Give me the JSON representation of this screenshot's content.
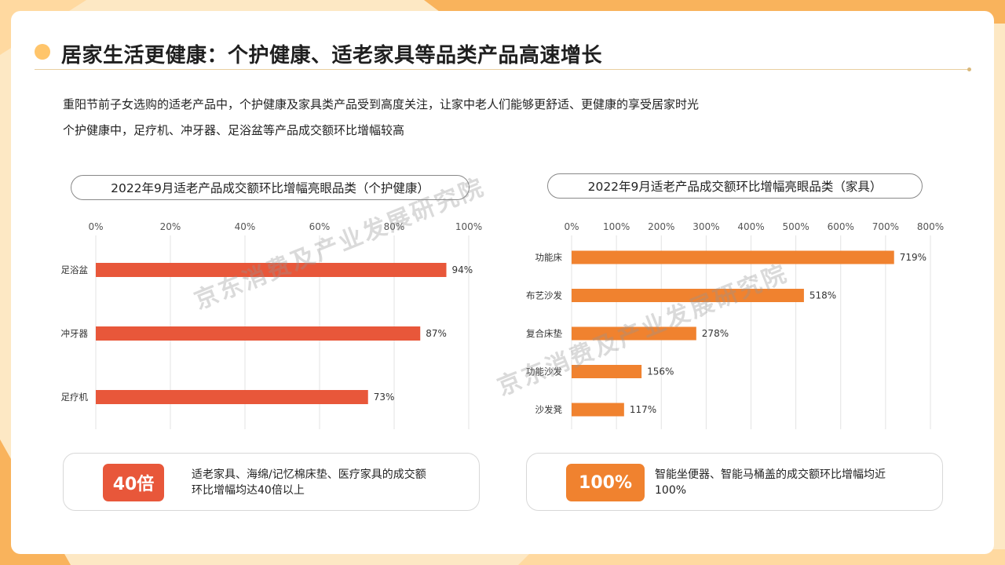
{
  "header": {
    "title": "居家生活更健康：个护健康、适老家具等品类产品高速增长",
    "subtitle_line1": "重阳节前子女选购的适老产品中，个护健康及家具类产品受到高度关注，让家中老人们能够更舒适、更健康的享受居家时光",
    "subtitle_line2": "个护健康中，足疗机、冲牙器、足浴盆等产品成交额环比增幅较高"
  },
  "watermark": "京东消费及产业发展研究院",
  "colors": {
    "bar_left": "#e8573a",
    "bar_right": "#f0822f",
    "accent_dot": "#ffc56b"
  },
  "chart_data": [
    {
      "type": "bar",
      "orientation": "horizontal",
      "title": "2022年9月适老产品成交额环比增幅亮眼品类（个护健康）",
      "categories": [
        "足浴盆",
        "冲牙器",
        "足疗机"
      ],
      "values": [
        94,
        87,
        73
      ],
      "value_labels": [
        "94%",
        "87%",
        "73%"
      ],
      "xlim": [
        0,
        100
      ],
      "ticks": [
        0,
        20,
        40,
        60,
        80,
        100
      ],
      "tick_labels": [
        "0%",
        "20%",
        "40%",
        "60%",
        "80%",
        "100%"
      ],
      "grid": true,
      "color": "#e8573a"
    },
    {
      "type": "bar",
      "orientation": "horizontal",
      "title": "2022年9月适老产品成交额环比增幅亮眼品类（家具）",
      "categories": [
        "功能床",
        "布艺沙发",
        "复合床垫",
        "功能沙发",
        "沙发凳"
      ],
      "values": [
        719,
        518,
        278,
        156,
        117
      ],
      "value_labels": [
        "719%",
        "518%",
        "278%",
        "156%",
        "117%"
      ],
      "xlim": [
        0,
        800
      ],
      "ticks": [
        0,
        100,
        200,
        300,
        400,
        500,
        600,
        700,
        800
      ],
      "tick_labels": [
        "0%",
        "100%",
        "200%",
        "300%",
        "400%",
        "500%",
        "600%",
        "700%",
        "800%"
      ],
      "grid": true,
      "color": "#f0822f"
    }
  ],
  "callouts": [
    {
      "badge": "40倍",
      "text": "适老家具、海绵/记忆棉床垫、医疗家具的成交额环比增幅均达40倍以上",
      "color": "#e8573a"
    },
    {
      "badge": "100%",
      "text": "智能坐便器、智能马桶盖的成交额环比增幅均近100%",
      "color": "#f0822f"
    }
  ]
}
